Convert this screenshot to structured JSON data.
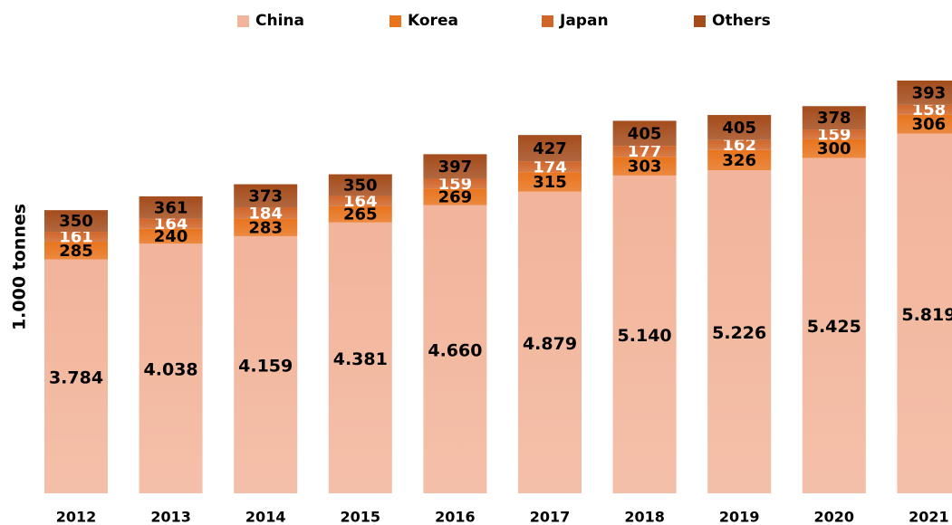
{
  "chart_data": {
    "type": "stacked_bar",
    "y_label": "1.000 tonnes",
    "categories": [
      "2012",
      "2013",
      "2014",
      "2015",
      "2016",
      "2017",
      "2018",
      "2019",
      "2020",
      "2021"
    ],
    "series": [
      {
        "name": "China",
        "color": "#f2b49a",
        "values": [
          3784,
          4038,
          4159,
          4381,
          4660,
          4879,
          5140,
          5226,
          5425,
          5819
        ],
        "value_labels": [
          "3.784",
          "4.038",
          "4.159",
          "4.381",
          "4.660",
          "4.879",
          "5.140",
          "5.226",
          "5.425",
          "5.819"
        ]
      },
      {
        "name": "Korea",
        "color": "#e8741e",
        "values": [
          285,
          240,
          283,
          265,
          269,
          315,
          303,
          326,
          300,
          306
        ]
      },
      {
        "name": "Japan",
        "color": "#d0662a",
        "values": [
          161,
          164,
          184,
          164,
          159,
          174,
          177,
          162,
          159,
          158
        ]
      },
      {
        "name": "Others",
        "color": "#a44c1c",
        "values": [
          350,
          361,
          373,
          350,
          397,
          427,
          405,
          405,
          378,
          393
        ]
      }
    ]
  }
}
